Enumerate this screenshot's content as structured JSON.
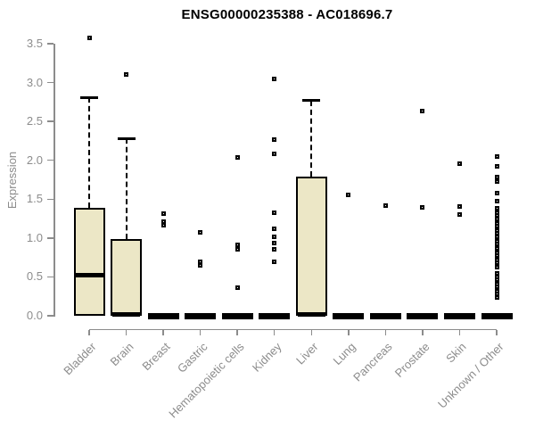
{
  "title": "ENSG00000235388 - AC018696.7",
  "colors": {
    "box_fill": "#ECE7C6",
    "box_line": "#000000",
    "median": "#000000",
    "outlier_border": "#000000",
    "outlier_fill": "#FFFFFF",
    "axis": "#8C8C8C",
    "tick_text": "#8C8C8C",
    "title_text": "#000000",
    "background": "#FFFFFF"
  },
  "chart_data": {
    "type": "boxplot",
    "title": "ENSG00000235388 - AC018696.7",
    "xlabel": "",
    "ylabel": "Expression",
    "ylim": [
      0.0,
      3.5
    ],
    "yticks": [
      0.0,
      0.5,
      1.0,
      1.5,
      2.0,
      2.5,
      3.0,
      3.5
    ],
    "grid": false,
    "legend": "none",
    "x_tick_rotation_deg": 45,
    "categories": [
      "Bladder",
      "Brain",
      "Breast",
      "Gastric",
      "Hematopoietic cells",
      "Kidney",
      "Liver",
      "Lung",
      "Pancreas",
      "Prostate",
      "Skin",
      "Unknown / Other"
    ],
    "boxes": [
      {
        "label": "Bladder",
        "q1": 0.0,
        "median": 0.52,
        "q3": 1.39,
        "whisker_low": 0.0,
        "whisker_high": 2.81,
        "outliers": [
          3.57
        ]
      },
      {
        "label": "Brain",
        "q1": 0.0,
        "median": 0.02,
        "q3": 0.99,
        "whisker_low": 0.0,
        "whisker_high": 2.28,
        "outliers": [
          3.1
        ]
      },
      {
        "label": "Breast",
        "q1": 0.0,
        "median": 0.0,
        "q3": 0.0,
        "whisker_low": 0.0,
        "whisker_high": 0.0,
        "outliers": [
          1.31,
          1.21,
          1.16
        ]
      },
      {
        "label": "Gastric",
        "q1": 0.0,
        "median": 0.0,
        "q3": 0.0,
        "whisker_low": 0.0,
        "whisker_high": 0.0,
        "outliers": [
          1.07,
          0.7,
          0.65
        ]
      },
      {
        "label": "Hematopoietic cells",
        "q1": 0.0,
        "median": 0.0,
        "q3": 0.0,
        "whisker_low": 0.0,
        "whisker_high": 0.0,
        "outliers": [
          2.04,
          0.91,
          0.86,
          0.36
        ]
      },
      {
        "label": "Kidney",
        "q1": 0.0,
        "median": 0.0,
        "q3": 0.0,
        "whisker_low": 0.0,
        "whisker_high": 0.0,
        "outliers": [
          3.05,
          2.27,
          2.08,
          1.33,
          1.12,
          1.02,
          0.93,
          0.86,
          0.7
        ]
      },
      {
        "label": "Liver",
        "q1": 0.0,
        "median": 0.02,
        "q3": 1.79,
        "whisker_low": 0.0,
        "whisker_high": 2.77,
        "outliers": []
      },
      {
        "label": "Lung",
        "q1": 0.0,
        "median": 0.0,
        "q3": 0.0,
        "whisker_low": 0.0,
        "whisker_high": 0.0,
        "outliers": [
          1.55
        ]
      },
      {
        "label": "Pancreas",
        "q1": 0.0,
        "median": 0.0,
        "q3": 0.0,
        "whisker_low": 0.0,
        "whisker_high": 0.0,
        "outliers": [
          1.42
        ]
      },
      {
        "label": "Prostate",
        "q1": 0.0,
        "median": 0.0,
        "q3": 0.0,
        "whisker_low": 0.0,
        "whisker_high": 0.0,
        "outliers": [
          2.63,
          1.39
        ]
      },
      {
        "label": "Skin",
        "q1": 0.0,
        "median": 0.0,
        "q3": 0.0,
        "whisker_low": 0.0,
        "whisker_high": 0.0,
        "outliers": [
          1.96,
          1.41,
          1.3
        ]
      },
      {
        "label": "Unknown / Other",
        "q1": 0.0,
        "median": 0.0,
        "q3": 0.0,
        "whisker_low": 0.0,
        "whisker_high": 0.0,
        "outliers": [
          2.05,
          1.92,
          1.79,
          1.73,
          1.58,
          1.47,
          1.38,
          1.33,
          1.29,
          1.24,
          1.19,
          1.15,
          1.1,
          1.06,
          1.01,
          0.96,
          0.92,
          0.87,
          0.81,
          0.77,
          0.72,
          0.68,
          0.63,
          0.55,
          0.5,
          0.46,
          0.41,
          0.37,
          0.32,
          0.28,
          0.24
        ]
      }
    ]
  }
}
